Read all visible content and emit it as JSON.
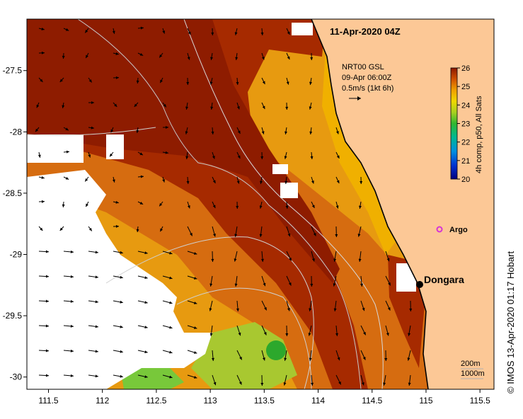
{
  "map": {
    "title": "11-Apr-2020 04Z",
    "x_ticks": [
      "111.5",
      "112",
      "112.5",
      "113",
      "113.5",
      "114",
      "114.5",
      "115",
      "115.5"
    ],
    "y_ticks": [
      "-27.5",
      "-28",
      "-28.5",
      "-29",
      "-29.5",
      "-30"
    ],
    "lon_range": [
      111.3,
      115.63
    ],
    "lat_range": [
      -27.08,
      -30.1
    ]
  },
  "current_legend": {
    "line1": "NRT00 GSL",
    "line2": "09-Apr 06:00Z",
    "line3": "0.5m/s (1kt 6h)"
  },
  "colorbar": {
    "ticks": [
      "26",
      "25",
      "24",
      "23",
      "22",
      "21",
      "20"
    ],
    "label": "4h comp, p50, All Sats",
    "range": [
      20,
      26
    ]
  },
  "markers": {
    "argo_label": "Argo",
    "argo_color": "#d633d6",
    "town_label": "Dongara"
  },
  "bathymetry": {
    "label_200": "200m",
    "label_1000": "1000m"
  },
  "credit": "© IMOS 13-Apr-2020 01:17 Hobart",
  "colors": {
    "land": "#fcc896",
    "warm": "#a02800",
    "mid": "#d8780c",
    "cool": "#f0b000",
    "green": "#5cc83a",
    "cloud": "#ffffff"
  }
}
